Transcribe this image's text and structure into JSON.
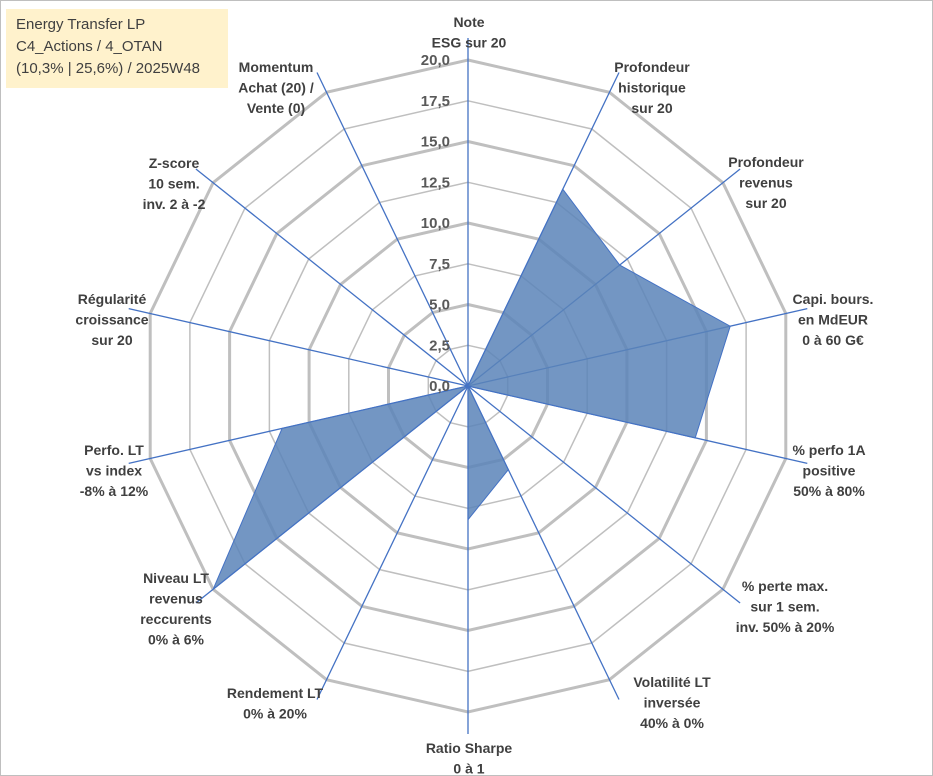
{
  "info": {
    "line1": "Energy Transfer LP",
    "line2": "C4_Actions / 4_OTAN",
    "line3": "(10,3% | 25,6%) / 2025W48"
  },
  "colors": {
    "fill": "#5b84b8",
    "axis": "#4472c4",
    "grid": "#bfbfbf"
  },
  "chart_data": {
    "type": "radar",
    "rmax": 20,
    "ticks": [
      "0,0",
      "2,5",
      "5,0",
      "7,5",
      "10,0",
      "12,5",
      "15,0",
      "17,5",
      "20,0"
    ],
    "axes": [
      {
        "label": [
          "Note",
          "ESG sur 20"
        ],
        "value": 0
      },
      {
        "label": [
          "Profondeur",
          "historique",
          "sur 20"
        ],
        "value": 13.4
      },
      {
        "label": [
          "Profondeur",
          "revenus",
          "sur 20"
        ],
        "value": 11.9
      },
      {
        "label": [
          "Capi. bours.",
          "en MdEUR",
          "0 à 60 G€"
        ],
        "value": 16.5
      },
      {
        "label": [
          "% perfo 1A",
          "positive",
          "50% à 80%"
        ],
        "value": 14.3
      },
      {
        "label": [
          "% perte max.",
          "sur 1 sem.",
          "inv. 50% à 20%"
        ],
        "value": 0
      },
      {
        "label": [
          "Volatilité LT",
          "inversée",
          "40% à 0%"
        ],
        "value": 5.7
      },
      {
        "label": [
          "Ratio Sharpe",
          "0 à 1"
        ],
        "value": 8.2
      },
      {
        "label": [
          "Rendement LT",
          "0% à 20%"
        ],
        "value": 0
      },
      {
        "label": [
          "Niveau LT",
          "revenus",
          "reccurents",
          "0% à 6%"
        ],
        "value": 20
      },
      {
        "label": [
          "Perfo. LT",
          "vs index",
          "-8% à 12%"
        ],
        "value": 11.7
      },
      {
        "label": [
          "Régularité",
          "croissance",
          "sur 20"
        ],
        "value": 0
      },
      {
        "label": [
          "Z-score",
          "10 sem.",
          "inv. 2 à -2"
        ],
        "value": 0
      },
      {
        "label": [
          "Momentum",
          "Achat (20) /",
          "Vente (0)"
        ],
        "value": 0
      }
    ]
  }
}
